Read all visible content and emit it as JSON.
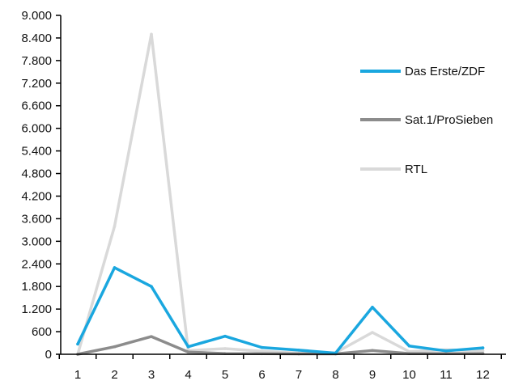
{
  "chart_data": {
    "type": "line",
    "categories": [
      "1",
      "2",
      "3",
      "4",
      "5",
      "6",
      "7",
      "8",
      "9",
      "10",
      "11",
      "12"
    ],
    "ylim": [
      0,
      9000
    ],
    "y_ticks": [
      0,
      600,
      1200,
      1800,
      2400,
      3000,
      3600,
      4200,
      4800,
      5400,
      6000,
      6600,
      7200,
      7800,
      8400,
      9000
    ],
    "y_tick_labels": [
      "0",
      "600",
      "1.200",
      "1.800",
      "2.400",
      "3.000",
      "3.600",
      "4.200",
      "4.800",
      "5.400",
      "6.000",
      "6.600",
      "7.200",
      "7.800",
      "8.400",
      "9.000"
    ],
    "grid": false,
    "legend_position": "right",
    "series": [
      {
        "name": "Das Erste/ZDF",
        "color": "#1aa7df",
        "values": [
          270,
          2300,
          1800,
          200,
          480,
          180,
          110,
          30,
          1250,
          220,
          90,
          170
        ]
      },
      {
        "name": "Sat.1/ProSieben",
        "color": "#8c8c8c",
        "values": [
          0,
          200,
          470,
          60,
          20,
          15,
          10,
          10,
          100,
          20,
          20,
          20
        ]
      },
      {
        "name": "RTL",
        "color": "#d9d9d9",
        "values": [
          0,
          3400,
          8500,
          100,
          150,
          80,
          30,
          40,
          580,
          70,
          120,
          90
        ]
      }
    ]
  }
}
